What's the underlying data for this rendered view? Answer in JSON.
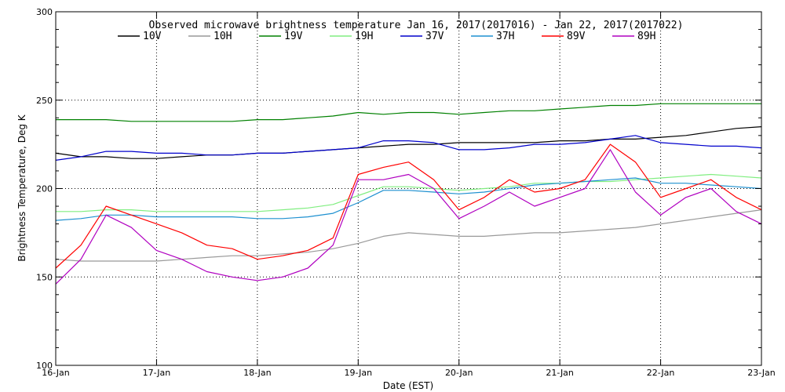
{
  "chart_data": {
    "type": "line",
    "title": "Observed microwave brightness temperature Jan 16, 2017(2017016) - Jan 22, 2017(2017022)",
    "xlabel": "Date (EST)",
    "ylabel": "Brightness Temperature, Deg K",
    "xlim": [
      0,
      7
    ],
    "ylim": [
      100,
      300
    ],
    "x_tick_values": [
      0,
      1,
      2,
      3,
      4,
      5,
      6,
      7
    ],
    "x_tick_labels": [
      "16-Jan",
      "17-Jan",
      "18-Jan",
      "19-Jan",
      "20-Jan",
      "21-Jan",
      "22-Jan",
      "23-Jan"
    ],
    "y_tick_values": [
      100,
      150,
      200,
      250,
      300
    ],
    "y_tick_labels": [
      "100",
      "150",
      "200",
      "250",
      "300"
    ],
    "grid": true,
    "legend_position": "top",
    "x": [
      0,
      0.25,
      0.5,
      0.75,
      1,
      1.25,
      1.5,
      1.75,
      2,
      2.25,
      2.5,
      2.75,
      3,
      3.25,
      3.5,
      3.75,
      4,
      4.25,
      4.5,
      4.75,
      5,
      5.25,
      5.5,
      5.75,
      6,
      6.25,
      6.5,
      6.75,
      7
    ],
    "series": [
      {
        "name": "10V",
        "color": "#000000",
        "values": [
          220,
          218,
          218,
          217,
          217,
          218,
          219,
          219,
          220,
          220,
          221,
          222,
          223,
          224,
          225,
          225,
          226,
          226,
          226,
          226,
          227,
          227,
          228,
          228,
          229,
          230,
          232,
          234,
          235
        ]
      },
      {
        "name": "10H",
        "color": "#999999",
        "values": [
          160,
          159,
          159,
          159,
          159,
          160,
          161,
          162,
          162,
          163,
          164,
          166,
          169,
          173,
          175,
          174,
          173,
          173,
          174,
          175,
          175,
          176,
          177,
          178,
          180,
          182,
          184,
          186,
          188
        ]
      },
      {
        "name": "19V",
        "color": "#008000",
        "values": [
          239,
          239,
          239,
          238,
          238,
          238,
          238,
          238,
          239,
          239,
          240,
          241,
          243,
          242,
          243,
          243,
          242,
          243,
          244,
          244,
          245,
          246,
          247,
          247,
          248,
          248,
          248,
          248,
          248
        ]
      },
      {
        "name": "19H",
        "color": "#80ee80",
        "values": [
          187,
          187,
          188,
          188,
          187,
          187,
          187,
          187,
          187,
          188,
          189,
          191,
          196,
          201,
          201,
          200,
          199,
          200,
          201,
          203,
          203,
          204,
          204,
          205,
          206,
          207,
          208,
          207,
          206
        ]
      },
      {
        "name": "37V",
        "color": "#0000cc",
        "values": [
          216,
          218,
          221,
          221,
          220,
          220,
          219,
          219,
          220,
          220,
          221,
          222,
          223,
          227,
          227,
          226,
          222,
          222,
          223,
          225,
          225,
          226,
          228,
          230,
          226,
          225,
          224,
          224,
          223
        ]
      },
      {
        "name": "37H",
        "color": "#1e90d0",
        "values": [
          182,
          183,
          185,
          185,
          184,
          184,
          184,
          184,
          183,
          183,
          184,
          186,
          192,
          199,
          199,
          198,
          197,
          198,
          200,
          202,
          203,
          204,
          205,
          206,
          203,
          203,
          202,
          201,
          200
        ]
      },
      {
        "name": "89V",
        "color": "#ff0000",
        "values": [
          155,
          168,
          190,
          185,
          180,
          175,
          168,
          166,
          160,
          162,
          165,
          172,
          208,
          212,
          215,
          205,
          188,
          195,
          205,
          198,
          200,
          205,
          225,
          215,
          195,
          200,
          205,
          195,
          188
        ]
      },
      {
        "name": "89H",
        "color": "#b000c0",
        "values": [
          146,
          160,
          185,
          178,
          165,
          160,
          153,
          150,
          148,
          150,
          155,
          168,
          205,
          205,
          208,
          200,
          183,
          190,
          198,
          190,
          195,
          200,
          222,
          198,
          185,
          195,
          200,
          187,
          180
        ]
      }
    ]
  }
}
